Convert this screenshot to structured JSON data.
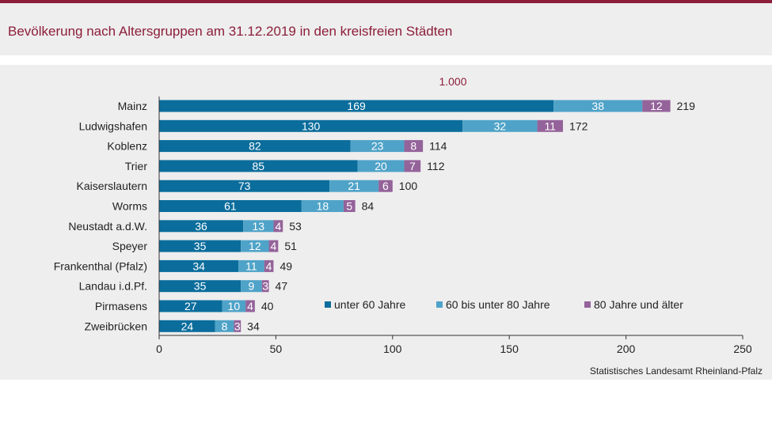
{
  "header": {
    "title": "Bevölkerung nach Altersgruppen am 31.12.2019 in den kreisfreien Städten"
  },
  "source": "Statistisches Landesamt Rheinland-Pfalz",
  "chart_data": {
    "type": "bar",
    "orientation": "horizontal",
    "stacked": true,
    "unit_note": "1.000",
    "categories": [
      "Mainz",
      "Ludwigshafen",
      "Koblenz",
      "Trier",
      "Kaiserslautern",
      "Worms",
      "Neustadt a.d.W.",
      "Speyer",
      "Frankenthal (Pfalz)",
      "Landau i.d.Pf.",
      "Pirmasens",
      "Zweibrücken"
    ],
    "series": [
      {
        "name": "unter 60 Jahre",
        "color": "#0a6d9c",
        "values": [
          169,
          130,
          82,
          85,
          73,
          61,
          36,
          35,
          34,
          35,
          27,
          24
        ]
      },
      {
        "name": "60 bis unter 80 Jahre",
        "color": "#4fa3c8",
        "values": [
          38,
          32,
          23,
          20,
          21,
          18,
          13,
          12,
          11,
          9,
          10,
          8
        ]
      },
      {
        "name": "80 Jahre und älter",
        "color": "#94639a",
        "values": [
          12,
          11,
          8,
          7,
          6,
          5,
          4,
          4,
          4,
          3,
          4,
          3
        ]
      }
    ],
    "totals": [
      219,
      172,
      114,
      112,
      100,
      84,
      53,
      51,
      49,
      47,
      40,
      34
    ],
    "xlim": [
      0,
      250
    ],
    "xticks": [
      0,
      50,
      100,
      150,
      200,
      250
    ],
    "grid": false,
    "legend_position": "bottom-right"
  }
}
